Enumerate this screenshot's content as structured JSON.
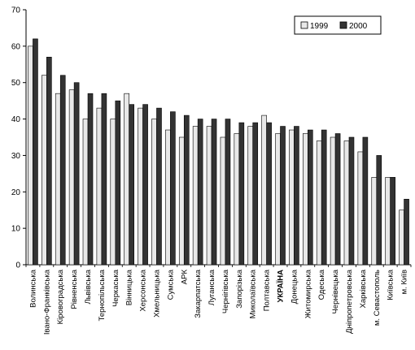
{
  "chart_data": {
    "type": "bar",
    "title": "",
    "xlabel": "",
    "ylabel": "",
    "ylim": [
      0,
      70
    ],
    "yticks": [
      0,
      10,
      20,
      30,
      40,
      50,
      60,
      70
    ],
    "grid": false,
    "legend_position": "top-right",
    "categories": [
      "Волинська",
      "Івано-Франківська",
      "Кіровоградська",
      "Рівненська",
      "Львівська",
      "Тернопільська",
      "Черкаська",
      "Вінницька",
      "Херсонська",
      "Хмельницька",
      "Сумська",
      "АРК",
      "Закарпатська",
      "Луганська",
      "Чернігівська",
      "Запорізька",
      "Миколаївська",
      "Полтавська",
      "УКРАЇНА",
      "Донецька",
      "Житомирська",
      "Одеська",
      "Чернівецька",
      "Дніпропетровська",
      "Харківська",
      "м. Севастополь",
      "Київська",
      "м. Київ"
    ],
    "highlight_category": "УКРАЇНА",
    "series": [
      {
        "name": "1999",
        "color": "#e8e8e8",
        "values": [
          60,
          52,
          47,
          48,
          40,
          43,
          40,
          47,
          43,
          40,
          37,
          35,
          38,
          38,
          35,
          36,
          38,
          41,
          36,
          37,
          36,
          34,
          35,
          34,
          31,
          24,
          24,
          15
        ]
      },
      {
        "name": "2000",
        "color": "#333333",
        "values": [
          62,
          57,
          52,
          50,
          47,
          47,
          45,
          44,
          44,
          43,
          42,
          41,
          40,
          40,
          40,
          39,
          39,
          39,
          38,
          38,
          37,
          37,
          36,
          35,
          35,
          30,
          24,
          18
        ]
      }
    ]
  }
}
